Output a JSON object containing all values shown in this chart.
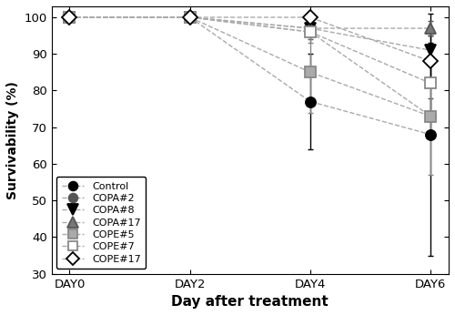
{
  "x_labels": [
    "DAY0",
    "DAY2",
    "DAY4",
    "DAY6"
  ],
  "x_values": [
    0,
    2,
    4,
    6
  ],
  "series": [
    {
      "label": "Control",
      "values": [
        100,
        100,
        77,
        68
      ],
      "yerr": [
        0,
        0,
        13,
        33
      ],
      "color": "#000000",
      "marker": "o",
      "markersize": 8,
      "fillstyle": "full",
      "mfc": "#000000"
    },
    {
      "label": "COPA#2",
      "values": [
        100,
        100,
        96,
        73
      ],
      "yerr": [
        0,
        0,
        2,
        5
      ],
      "color": "#555555",
      "marker": "o",
      "markersize": 8,
      "fillstyle": "full",
      "mfc": "#555555"
    },
    {
      "label": "COPA#8",
      "values": [
        100,
        100,
        97,
        91
      ],
      "yerr": [
        0,
        0,
        2,
        4
      ],
      "color": "#000000",
      "marker": "v",
      "markersize": 9,
      "fillstyle": "full",
      "mfc": "#000000"
    },
    {
      "label": "COPA#17",
      "values": [
        100,
        100,
        97,
        97
      ],
      "yerr": [
        0,
        0,
        2,
        2
      ],
      "color": "#555555",
      "marker": "^",
      "markersize": 9,
      "fillstyle": "full",
      "mfc": "#777777"
    },
    {
      "label": "COPE#5",
      "values": [
        100,
        100,
        85,
        73
      ],
      "yerr": [
        0,
        0,
        11,
        16
      ],
      "color": "#888888",
      "marker": "s",
      "markersize": 8,
      "fillstyle": "full",
      "mfc": "#aaaaaa"
    },
    {
      "label": "COPE#7",
      "values": [
        100,
        100,
        96,
        82
      ],
      "yerr": [
        0,
        0,
        3,
        10
      ],
      "color": "#888888",
      "marker": "s",
      "markersize": 8,
      "fillstyle": "none",
      "mfc": "#ffffff"
    },
    {
      "label": "COPE#17",
      "values": [
        100,
        100,
        100,
        88
      ],
      "yerr": [
        0,
        0,
        0,
        5
      ],
      "color": "#000000",
      "marker": "D",
      "markersize": 8,
      "fillstyle": "none",
      "mfc": "#ffffff"
    }
  ],
  "xlabel": "Day after treatment",
  "ylabel": "Survivability (%)",
  "ylim": [
    30,
    103
  ],
  "yticks": [
    30,
    40,
    50,
    60,
    70,
    80,
    90,
    100
  ],
  "legend_loc": "lower left",
  "figsize": [
    5.0,
    3.46
  ],
  "dpi": 100
}
